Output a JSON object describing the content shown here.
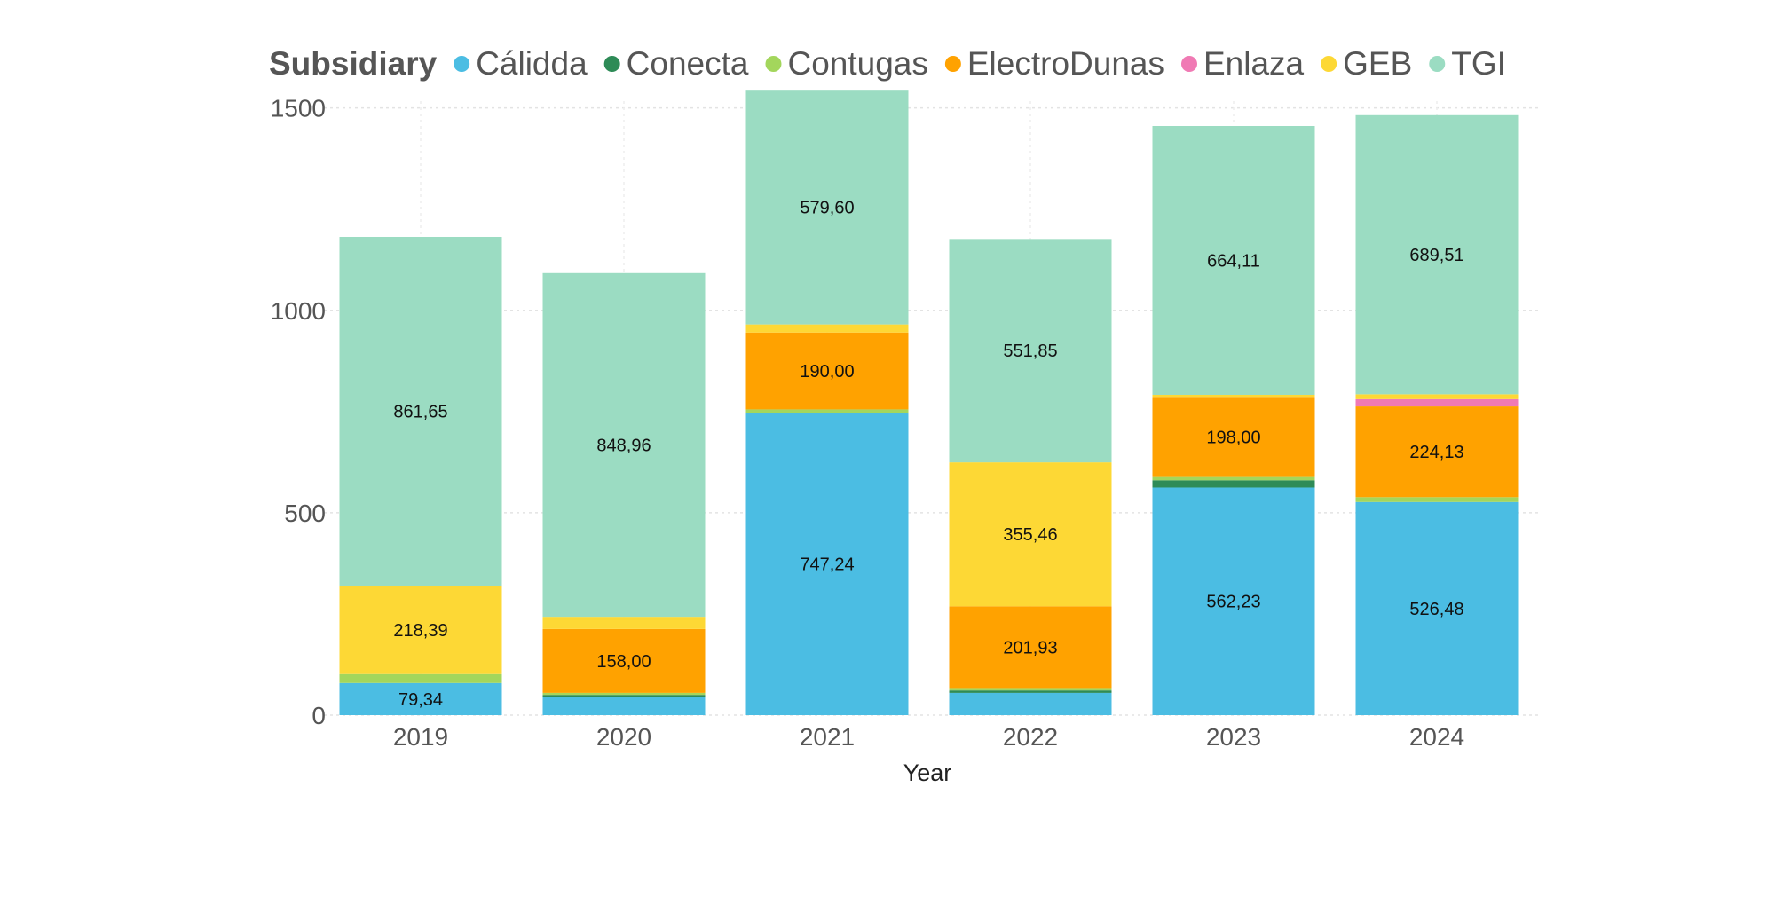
{
  "legend": {
    "title": "Subsidiary"
  },
  "chart_data": {
    "type": "bar",
    "stacked": true,
    "xlabel": "Year",
    "ylabel": "",
    "ylim": [
      0,
      1600
    ],
    "yticks": [
      0,
      500,
      1000,
      1500
    ],
    "grid": true,
    "legend_position": "top",
    "categories": [
      "2019",
      "2020",
      "2021",
      "2022",
      "2023",
      "2024"
    ],
    "series": [
      {
        "name": "Cálidda",
        "color": "#4BBDE3",
        "values": [
          79.34,
          45,
          747.24,
          55,
          562.23,
          526.48
        ],
        "labels": [
          "79,34",
          "",
          "747,24",
          "",
          "562,23",
          "526,48"
        ]
      },
      {
        "name": "Conecta",
        "color": "#2E8B57",
        "values": [
          0,
          5,
          0,
          6,
          18,
          0
        ],
        "labels": [
          "",
          "",
          "",
          "",
          "",
          ""
        ]
      },
      {
        "name": "Contugas",
        "color": "#A3D65C",
        "values": [
          22,
          5,
          8,
          6,
          8,
          12
        ],
        "labels": [
          "",
          "",
          "",
          "",
          "",
          ""
        ]
      },
      {
        "name": "ElectroDunas",
        "color": "#FFA200",
        "values": [
          0,
          158.0,
          190.0,
          201.93,
          198.0,
          224.13
        ],
        "labels": [
          "",
          "158,00",
          "190,00",
          "201,93",
          "198,00",
          "224,13"
        ]
      },
      {
        "name": "Enlaza",
        "color": "#F07AB4",
        "values": [
          0,
          0,
          0,
          0,
          0,
          18
        ],
        "labels": [
          "",
          "",
          "",
          "",
          "",
          ""
        ]
      },
      {
        "name": "GEB",
        "color": "#FDD835",
        "values": [
          218.39,
          30,
          20,
          355.46,
          5,
          12
        ],
        "labels": [
          "218,39",
          "",
          "",
          "355,46",
          "",
          ""
        ]
      },
      {
        "name": "TGI",
        "color": "#9BDCC2",
        "values": [
          861.65,
          848.96,
          579.6,
          551.85,
          664.11,
          689.51
        ],
        "labels": [
          "861,65",
          "848,96",
          "579,60",
          "551,85",
          "664,11",
          "689,51"
        ]
      }
    ]
  }
}
